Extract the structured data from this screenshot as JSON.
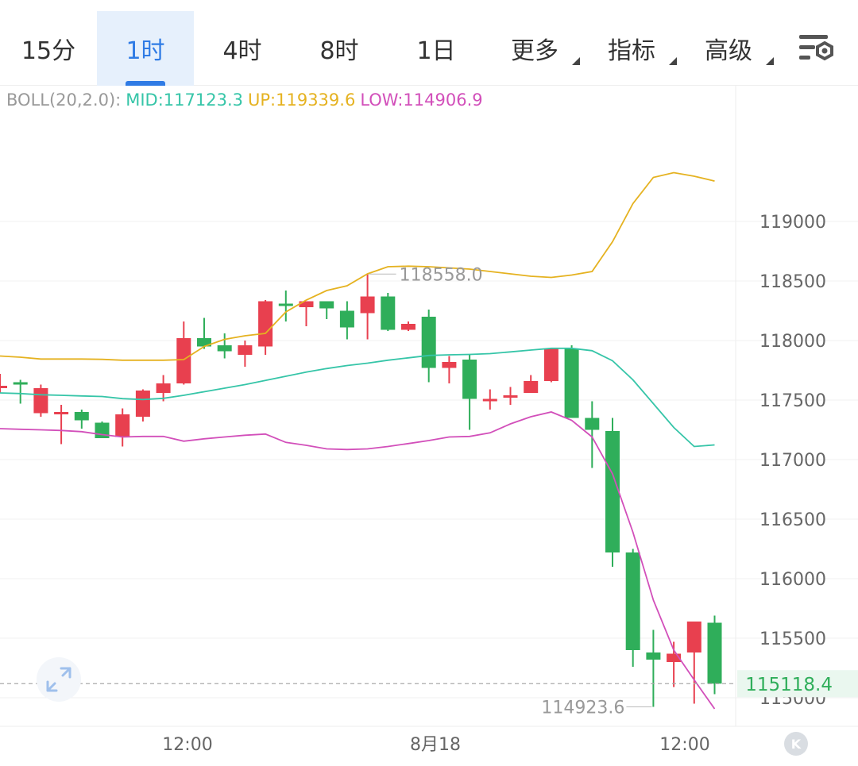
{
  "tabs": [
    {
      "label": "15分",
      "active": false,
      "dropdown": false
    },
    {
      "label": "1时",
      "active": true,
      "dropdown": false
    },
    {
      "label": "4时",
      "active": false,
      "dropdown": false
    },
    {
      "label": "8时",
      "active": false,
      "dropdown": false
    },
    {
      "label": "1日",
      "active": false,
      "dropdown": false
    },
    {
      "label": "更多",
      "active": false,
      "dropdown": true
    },
    {
      "label": "指标",
      "active": false,
      "dropdown": true
    },
    {
      "label": "高级",
      "active": false,
      "dropdown": true
    }
  ],
  "settings_icon": "chart-settings-icon",
  "legend": {
    "name": "BOLL(20,2.0):",
    "mid": "MID:117123.3",
    "up": "UP:119339.6",
    "low": "LOW:114906.9"
  },
  "colors": {
    "up_candle": "#e8404f",
    "down_candle": "#2fae5a",
    "mid": "#36c5a8",
    "upper": "#e5b220",
    "lower": "#d24fba",
    "accent": "#2f7be5",
    "axis_text": "#666666"
  },
  "chart_data": {
    "type": "candlestick",
    "y_range": [
      114800,
      119900
    ],
    "y_ticks": [
      "115000",
      "115500",
      "116000",
      "116500",
      "117000",
      "117500",
      "118000",
      "118500",
      "119000"
    ],
    "x_labels": [
      "12:00",
      "8月18",
      "12:00"
    ],
    "grid": true,
    "candles": [
      {
        "o": 117620,
        "h": 117720,
        "l": 117560,
        "c": 117620
      },
      {
        "o": 117650,
        "h": 117670,
        "l": 117470,
        "c": 117640
      },
      {
        "o": 117390,
        "h": 117630,
        "l": 117360,
        "c": 117600
      },
      {
        "o": 117400,
        "h": 117460,
        "l": 117130,
        "c": 117400
      },
      {
        "o": 117400,
        "h": 117420,
        "l": 117260,
        "c": 117330
      },
      {
        "o": 117310,
        "h": 117320,
        "l": 117180,
        "c": 117180
      },
      {
        "o": 117190,
        "h": 117430,
        "l": 117110,
        "c": 117380
      },
      {
        "o": 117360,
        "h": 117590,
        "l": 117320,
        "c": 117580
      },
      {
        "o": 117560,
        "h": 117710,
        "l": 117490,
        "c": 117640
      },
      {
        "o": 117640,
        "h": 118160,
        "l": 117630,
        "c": 118020
      },
      {
        "o": 118020,
        "h": 118190,
        "l": 117930,
        "c": 117950
      },
      {
        "o": 117960,
        "h": 118060,
        "l": 117850,
        "c": 117910
      },
      {
        "o": 117880,
        "h": 118000,
        "l": 117780,
        "c": 117960
      },
      {
        "o": 117950,
        "h": 118340,
        "l": 117880,
        "c": 118330
      },
      {
        "o": 118310,
        "h": 118420,
        "l": 118160,
        "c": 118290
      },
      {
        "o": 118280,
        "h": 118330,
        "l": 118120,
        "c": 118330
      },
      {
        "o": 118330,
        "h": 118330,
        "l": 118180,
        "c": 118270
      },
      {
        "o": 118250,
        "h": 118330,
        "l": 118010,
        "c": 118110
      },
      {
        "o": 118230,
        "h": 118558,
        "l": 118010,
        "c": 118370
      },
      {
        "o": 118370,
        "h": 118400,
        "l": 118080,
        "c": 118090
      },
      {
        "o": 118090,
        "h": 118160,
        "l": 118080,
        "c": 118140
      },
      {
        "o": 118200,
        "h": 118260,
        "l": 117650,
        "c": 117770
      },
      {
        "o": 117770,
        "h": 117870,
        "l": 117640,
        "c": 117820
      },
      {
        "o": 117840,
        "h": 117880,
        "l": 117250,
        "c": 117510
      },
      {
        "o": 117500,
        "h": 117590,
        "l": 117420,
        "c": 117510
      },
      {
        "o": 117520,
        "h": 117610,
        "l": 117460,
        "c": 117540
      },
      {
        "o": 117560,
        "h": 117710,
        "l": 117560,
        "c": 117660
      },
      {
        "o": 117660,
        "h": 117930,
        "l": 117650,
        "c": 117930
      },
      {
        "o": 117930,
        "h": 117960,
        "l": 117350,
        "c": 117350
      },
      {
        "o": 117350,
        "h": 117490,
        "l": 116930,
        "c": 117250
      },
      {
        "o": 117240,
        "h": 117350,
        "l": 116100,
        "c": 116220
      },
      {
        "o": 116220,
        "h": 116250,
        "l": 115260,
        "c": 115400
      },
      {
        "o": 115380,
        "h": 115570,
        "l": 114923.6,
        "c": 115320
      },
      {
        "o": 115300,
        "h": 115470,
        "l": 115090,
        "c": 115370
      },
      {
        "o": 115380,
        "h": 115640,
        "l": 114950,
        "c": 115640
      },
      {
        "o": 115630,
        "h": 115690,
        "l": 115030,
        "c": 115118.4
      }
    ],
    "boll_mid": [
      117560,
      117555,
      117545,
      117540,
      117535,
      117530,
      117512,
      117505,
      117515,
      117540,
      117570,
      117600,
      117630,
      117665,
      117700,
      117735,
      117765,
      117790,
      117810,
      117835,
      117855,
      117875,
      117880,
      117883,
      117890,
      117905,
      117920,
      117935,
      117935,
      117915,
      117830,
      117670,
      117470,
      117270,
      117110,
      117123.3
    ],
    "boll_upper": [
      117870,
      117860,
      117845,
      117845,
      117845,
      117842,
      117835,
      117835,
      117835,
      117840,
      117950,
      118010,
      118040,
      118060,
      118240,
      118340,
      118420,
      118460,
      118560,
      118620,
      118625,
      118620,
      118610,
      118600,
      118580,
      118560,
      118540,
      118530,
      118550,
      118580,
      118830,
      119150,
      119370,
      119410,
      119380,
      119339.6
    ],
    "boll_lower": [
      117260,
      117255,
      117250,
      117245,
      117235,
      117210,
      117190,
      117195,
      117195,
      117155,
      117175,
      117190,
      117205,
      117215,
      117145,
      117120,
      117090,
      117085,
      117090,
      117110,
      117135,
      117160,
      117190,
      117195,
      117225,
      117300,
      117360,
      117400,
      117330,
      117190,
      116880,
      116390,
      115820,
      115400,
      115150,
      114906.9
    ],
    "annotations": {
      "high": "118558.0",
      "low": "114923.6",
      "last_price": "115118.4"
    }
  }
}
